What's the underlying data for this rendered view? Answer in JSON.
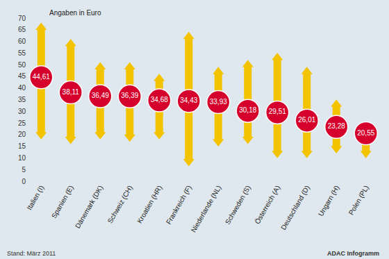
{
  "chart_data": {
    "type": "range",
    "ylabel": "Angaben in Euro",
    "note": "Stand: März 2011",
    "source": "ADAC Infogramm",
    "categories": [
      "Italien (I)",
      "Spanien (E)",
      "Dänemark (DK)",
      "Schweiz (CH)",
      "Kroatien (HR)",
      "Frankreich (F)",
      "Niederlande (NL)",
      "Schweden (S)",
      "Österreich (A)",
      "Deutschland (D)",
      "Ungarn (H)",
      "Polen (PL)"
    ],
    "low": [
      20,
      18,
      20,
      19,
      20,
      8.5,
      17,
      18,
      12,
      12,
      14,
      12
    ],
    "high": [
      66,
      59,
      49,
      49,
      44,
      62,
      47,
      50,
      53,
      47,
      33,
      23
    ],
    "values": [
      44.61,
      38.11,
      36.49,
      36.39,
      34.68,
      34.43,
      33.93,
      30.18,
      29.51,
      26.01,
      23.28,
      20.55
    ],
    "value_labels": [
      "44,61",
      "38,11",
      "36,49",
      "36,39",
      "34,68",
      "34,43",
      "33,93",
      "30,18",
      "29,51",
      "26,01",
      "23,28",
      "20,55"
    ],
    "color": "#f4c300",
    "label_color": "#d5002b",
    "data_labels": true,
    "ylim": [
      0,
      70
    ],
    "yticks": [
      0,
      5,
      10,
      15,
      20,
      25,
      30,
      35,
      40,
      45,
      50,
      55,
      60,
      65,
      70
    ],
    "grid": false
  }
}
